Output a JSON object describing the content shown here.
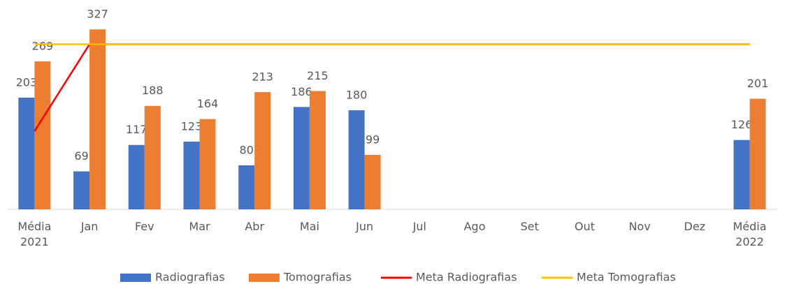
{
  "chart_data": {
    "type": "bar",
    "categories": [
      "Média 2021",
      "Jan",
      "Fev",
      "Mar",
      "Abr",
      "Mai",
      "Jun",
      "Jul",
      "Ago",
      "Set",
      "Out",
      "Nov",
      "Dez",
      "Média 2022"
    ],
    "series": [
      {
        "name": "Radiografias",
        "type": "bar",
        "color": "#4472c4",
        "values": [
          203,
          69,
          117,
          123,
          80,
          186,
          180,
          null,
          null,
          null,
          null,
          null,
          null,
          126
        ]
      },
      {
        "name": "Tomografias",
        "type": "bar",
        "color": "#ed7d31",
        "values": [
          269,
          327,
          188,
          164,
          213,
          215,
          99,
          null,
          null,
          null,
          null,
          null,
          null,
          201
        ]
      },
      {
        "name": "Meta Radiografias",
        "type": "line",
        "color": "#ff0000",
        "values": [
          142,
          300,
          300,
          300,
          300,
          300,
          300,
          300,
          300,
          300,
          300,
          300,
          300,
          300
        ]
      },
      {
        "name": "Meta Tomografias",
        "type": "line",
        "color": "#ffc000",
        "values": [
          300,
          300,
          300,
          300,
          300,
          300,
          300,
          300,
          300,
          300,
          300,
          300,
          300,
          300
        ]
      }
    ],
    "ylim": [
      0,
      350
    ],
    "legend": "bottom"
  }
}
